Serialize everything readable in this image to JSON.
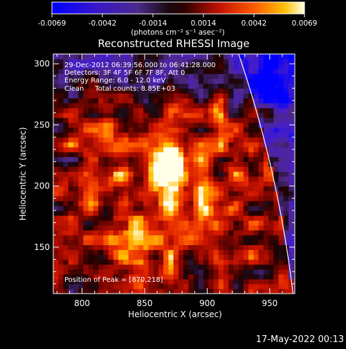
{
  "chart_data": {
    "type": "heatmap",
    "title": "Reconstructed RHESSI Image",
    "xlabel": "Heliocentric X (arcsec)",
    "ylabel": "Heliocentric Y (arcsec)",
    "xlim": [
      777,
      970
    ],
    "ylim": [
      112,
      308
    ],
    "xticks": [
      800,
      850,
      900,
      950
    ],
    "yticks": [
      150,
      200,
      250,
      300
    ],
    "colorbar": {
      "ticks": [
        "-0.0069",
        "-0.0042",
        "-0.0014",
        "0.0014",
        "0.0042",
        "0.0069"
      ],
      "unit_label": "(photons cm⁻² s⁻¹ asec⁻²)",
      "range": [
        -0.0069,
        0.0069
      ]
    },
    "annotations": [
      "29-Dec-2012 06:39:56.000 to 06:41:28.000",
      "Detectors: 3F 4F 5F 6F 7F 8F, Att 0",
      "Energy Range: 6.0 - 12.0 keV",
      "Clean     Total counts: 8.85E+03"
    ],
    "peak_text": "Position of Peak = [870,218]",
    "peak": [
      870,
      218
    ],
    "peak_value": 0.0069,
    "limb": {
      "center": [
        0,
        0
      ],
      "radius_arcsec": 975
    }
  },
  "footer": {
    "timestamp": "17-May-2022 00:13"
  }
}
